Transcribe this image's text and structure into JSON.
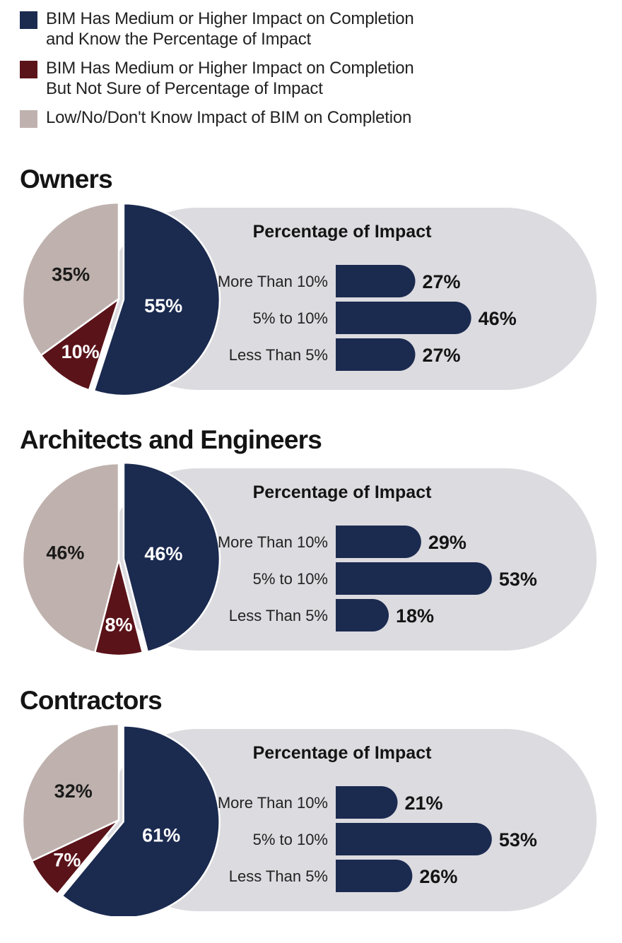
{
  "legend": [
    {
      "lines": [
        "BIM Has Medium or Higher Impact on Completion",
        "and Know the Percentage of Impact"
      ],
      "color": "#1b2a4f"
    },
    {
      "lines": [
        "BIM Has Medium or Higher Impact on Completion",
        "But Not Sure of Percentage of Impact"
      ],
      "color": "#5a1319"
    },
    {
      "lines": [
        "Low/No/Don't Know Impact of BIM on Completion"
      ],
      "color": "#bfb2ae"
    }
  ],
  "colors": {
    "known": "#1b2a4f",
    "unsure": "#5a1319",
    "low": "#bfb2ae",
    "panel": "#dcdbe0"
  },
  "chart_data": [
    {
      "title": "Owners",
      "pie": {
        "type": "pie",
        "labels": [
          "55%",
          "10%",
          "35%"
        ],
        "values": [
          55,
          10,
          35
        ]
      },
      "impact": {
        "type": "bar",
        "title": "Percentage of Impact",
        "categories": [
          "More Than 10%",
          "5% to 10%",
          "Less Than 5%"
        ],
        "values": [
          27,
          46,
          27
        ],
        "value_labels": [
          "27%",
          "46%",
          "27%"
        ]
      }
    },
    {
      "title": "Architects and Engineers",
      "pie": {
        "type": "pie",
        "labels": [
          "46%",
          "8%",
          "46%"
        ],
        "values": [
          46,
          8,
          46
        ]
      },
      "impact": {
        "type": "bar",
        "title": "Percentage of Impact",
        "categories": [
          "More Than 10%",
          "5% to 10%",
          "Less Than 5%"
        ],
        "values": [
          29,
          53,
          18
        ],
        "value_labels": [
          "29%",
          "53%",
          "18%"
        ]
      }
    },
    {
      "title": "Contractors",
      "pie": {
        "type": "pie",
        "labels": [
          "61%",
          "7%",
          "32%"
        ],
        "values": [
          61,
          7,
          32
        ]
      },
      "impact": {
        "type": "bar",
        "title": "Percentage of Impact",
        "categories": [
          "More Than 10%",
          "5% to 10%",
          "Less Than 5%"
        ],
        "values": [
          21,
          53,
          26
        ],
        "value_labels": [
          "21%",
          "53%",
          "26%"
        ]
      }
    }
  ]
}
